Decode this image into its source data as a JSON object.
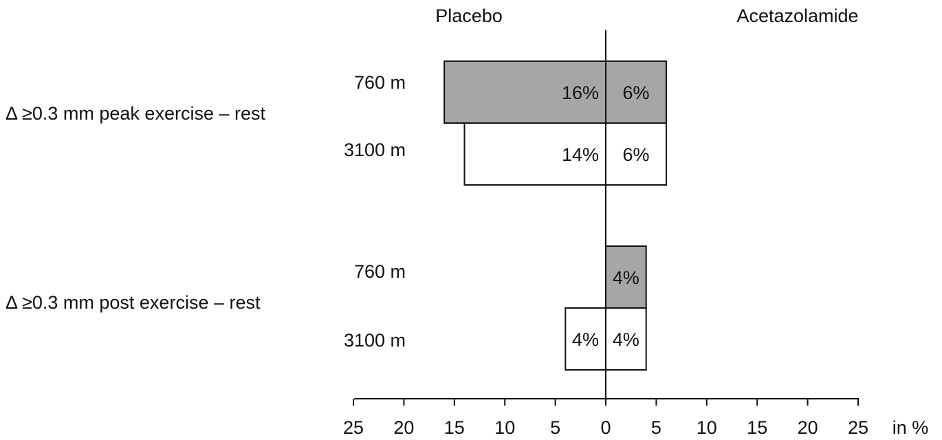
{
  "chart_data": {
    "type": "bar",
    "orientation": "horizontal-butterfly",
    "left_header": "Placebo",
    "right_header": "Acetazolamide",
    "unit_label": "in %",
    "xlim": [
      -25,
      25
    ],
    "x_ticks": [
      -25,
      -20,
      -15,
      -10,
      -5,
      0,
      5,
      10,
      15,
      20,
      25
    ],
    "x_tick_labels": [
      "25",
      "20",
      "15",
      "10",
      "5",
      "0",
      "5",
      "10",
      "15",
      "20",
      "25"
    ],
    "groups": [
      {
        "label": "Δ ≥0.3 mm peak exercise – rest",
        "rows": [
          {
            "label": "760 m",
            "style": "gray",
            "placebo": 16,
            "placebo_label": "16%",
            "acetazolamide": 6,
            "acetazolamide_label": "6%"
          },
          {
            "label": "3100 m",
            "style": "white",
            "placebo": 14,
            "placebo_label": "14%",
            "acetazolamide": 6,
            "acetazolamide_label": "6%"
          }
        ]
      },
      {
        "label": "Δ ≥0.3 mm post exercise – rest",
        "rows": [
          {
            "label": "760 m",
            "style": "gray",
            "placebo": 0,
            "placebo_label": "",
            "acetazolamide": 4,
            "acetazolamide_label": "4%"
          },
          {
            "label": "3100 m",
            "style": "white",
            "placebo": 4,
            "placebo_label": "4%",
            "acetazolamide": 4,
            "acetazolamide_label": "4%"
          }
        ]
      }
    ],
    "colors": {
      "gray": "#a6a6a6",
      "white": "#ffffff",
      "stroke": "#111111"
    }
  }
}
